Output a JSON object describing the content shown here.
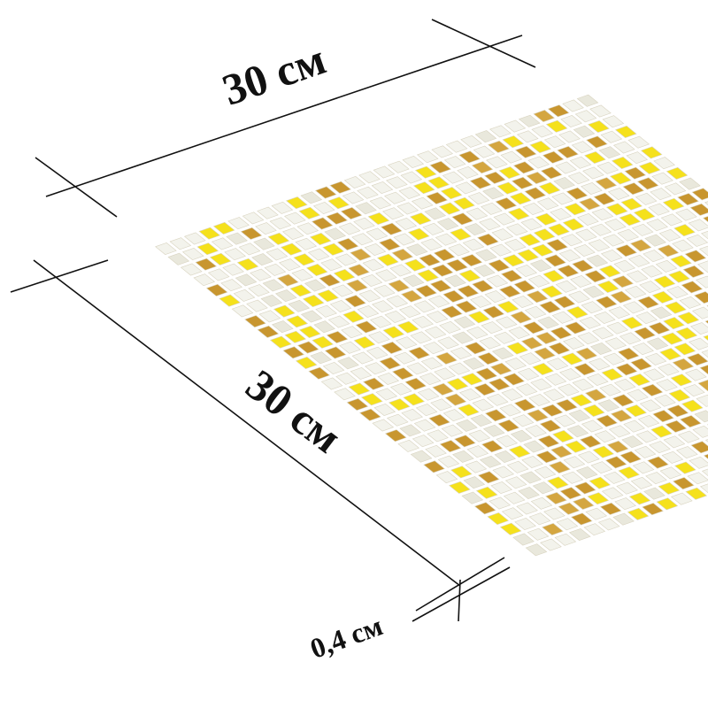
{
  "dimensions": {
    "width": "30 см",
    "length": "30 см",
    "thickness": "0,4 см"
  }
}
